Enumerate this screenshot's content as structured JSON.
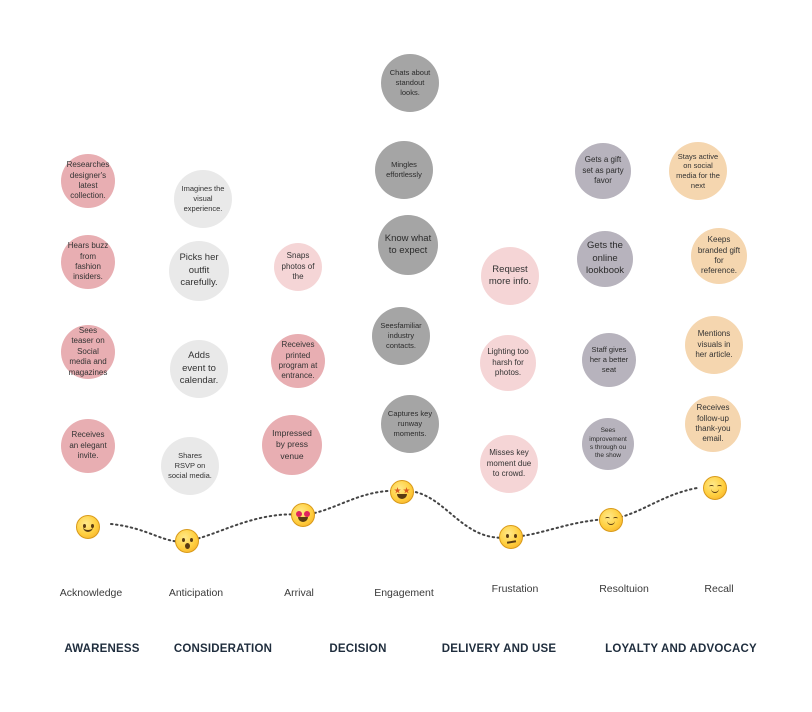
{
  "colors": {
    "pink_dark": "#e8aeb2",
    "pink_light": "#f5d5d6",
    "grey_light": "#e9e9e9",
    "grey_mid": "#a5a5a5",
    "purple_grey": "#b7b3bd",
    "peach": "#f5d6af",
    "curve": "#444444",
    "phase_text": "#1f2d3d"
  },
  "columns": [
    {
      "stage": "Acknowledge",
      "emotion_icon": "smiling-face-icon",
      "bubbles": [
        "Researches designer's latest collection.",
        "Hears buzz from fashion insiders.",
        "Sees teaser on Social media and magazines",
        "Receives an elegant invite."
      ]
    },
    {
      "stage": "Anticipation",
      "emotion_icon": "hushed-face-icon",
      "bubbles": [
        "Imagines the visual experience.",
        "Picks her outfit carefully.",
        "Adds event to calendar.",
        "Shares RSVP on social media."
      ]
    },
    {
      "stage": "Arrival",
      "emotion_icon": "heart-eyes-face-icon",
      "bubbles": [
        "Snaps photos of the",
        "Receives printed program at entrance.",
        "Impressed by press venue"
      ]
    },
    {
      "stage": "Engagement",
      "emotion_icon": "star-struck-face-icon",
      "bubbles": [
        "Chats about standout looks.",
        "Mingles effortlessly",
        "Know what to expect",
        "Seesfamiliar industry contacts.",
        "Captures key runway moments."
      ]
    },
    {
      "stage": "Frustation",
      "emotion_icon": "confused-face-icon",
      "bubbles": [
        "Request more info.",
        "Lighting too harsh for photos.",
        "Misses key moment due to crowd."
      ]
    },
    {
      "stage": "Resoltuion",
      "emotion_icon": "relieved-face-icon",
      "bubbles": [
        "Gets a gift set as party favor",
        "Gets the online lookbook",
        "Staff gives her a better seat",
        "Sees improvement s through ou the show"
      ]
    },
    {
      "stage": "Recall",
      "emotion_icon": "content-smile-face-icon",
      "bubbles": [
        "Stays active on social media for the next",
        "Keeps branded gift for reference.",
        "Mentions visuals in her article.",
        "Receives follow-up thank-you email."
      ]
    }
  ],
  "phases": [
    "AWARENESS",
    "CONSIDERATION",
    "DECISION",
    "DELIVERY AND USE",
    "LOYALTY AND ADVOCACY"
  ]
}
